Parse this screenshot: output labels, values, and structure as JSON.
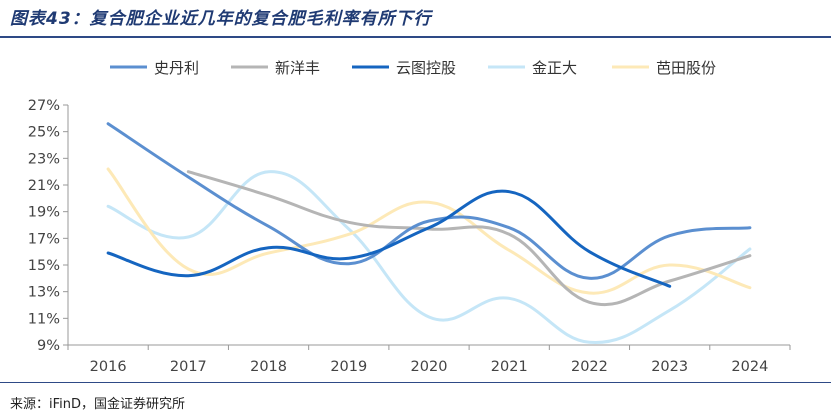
{
  "header": {
    "title": "图表43：复合肥企业近几年的复合肥毛利率有所下行"
  },
  "footer": {
    "source": "来源：iFinD，国金证券研究所"
  },
  "chart_data": {
    "type": "line",
    "title": "",
    "xlabel": "",
    "ylabel": "",
    "x": [
      "2016",
      "2017",
      "2018",
      "2019",
      "2020",
      "2021",
      "2022",
      "2023",
      "2024"
    ],
    "y_ticks": [
      "9%",
      "11%",
      "13%",
      "15%",
      "17%",
      "19%",
      "21%",
      "23%",
      "25%",
      "27%"
    ],
    "ylim": [
      9,
      27
    ],
    "y_unit": "%",
    "grid": false,
    "smooth": true,
    "legend_position": "top",
    "series": [
      {
        "name": "史丹利",
        "color": "#5b8fd0",
        "values": [
          25.6,
          21.6,
          17.9,
          15.1,
          18.3,
          17.8,
          14.0,
          17.2,
          17.8
        ]
      },
      {
        "name": "新洋丰",
        "color": "#b5b5b5",
        "values": [
          null,
          22.0,
          20.2,
          18.2,
          17.7,
          17.3,
          12.2,
          13.8,
          15.7
        ]
      },
      {
        "name": "云图控股",
        "color": "#1565c0",
        "values": [
          15.9,
          14.2,
          16.3,
          15.5,
          17.8,
          20.5,
          16.0,
          13.4,
          null
        ]
      },
      {
        "name": "金正大",
        "color": "#c5e6f7",
        "values": [
          19.4,
          17.1,
          22.0,
          17.7,
          11.1,
          12.5,
          9.2,
          11.6,
          16.2
        ]
      },
      {
        "name": "芭田股份",
        "color": "#fde9b7",
        "values": [
          22.2,
          14.7,
          15.9,
          17.3,
          19.7,
          16.1,
          12.9,
          15.0,
          13.3
        ]
      }
    ]
  }
}
